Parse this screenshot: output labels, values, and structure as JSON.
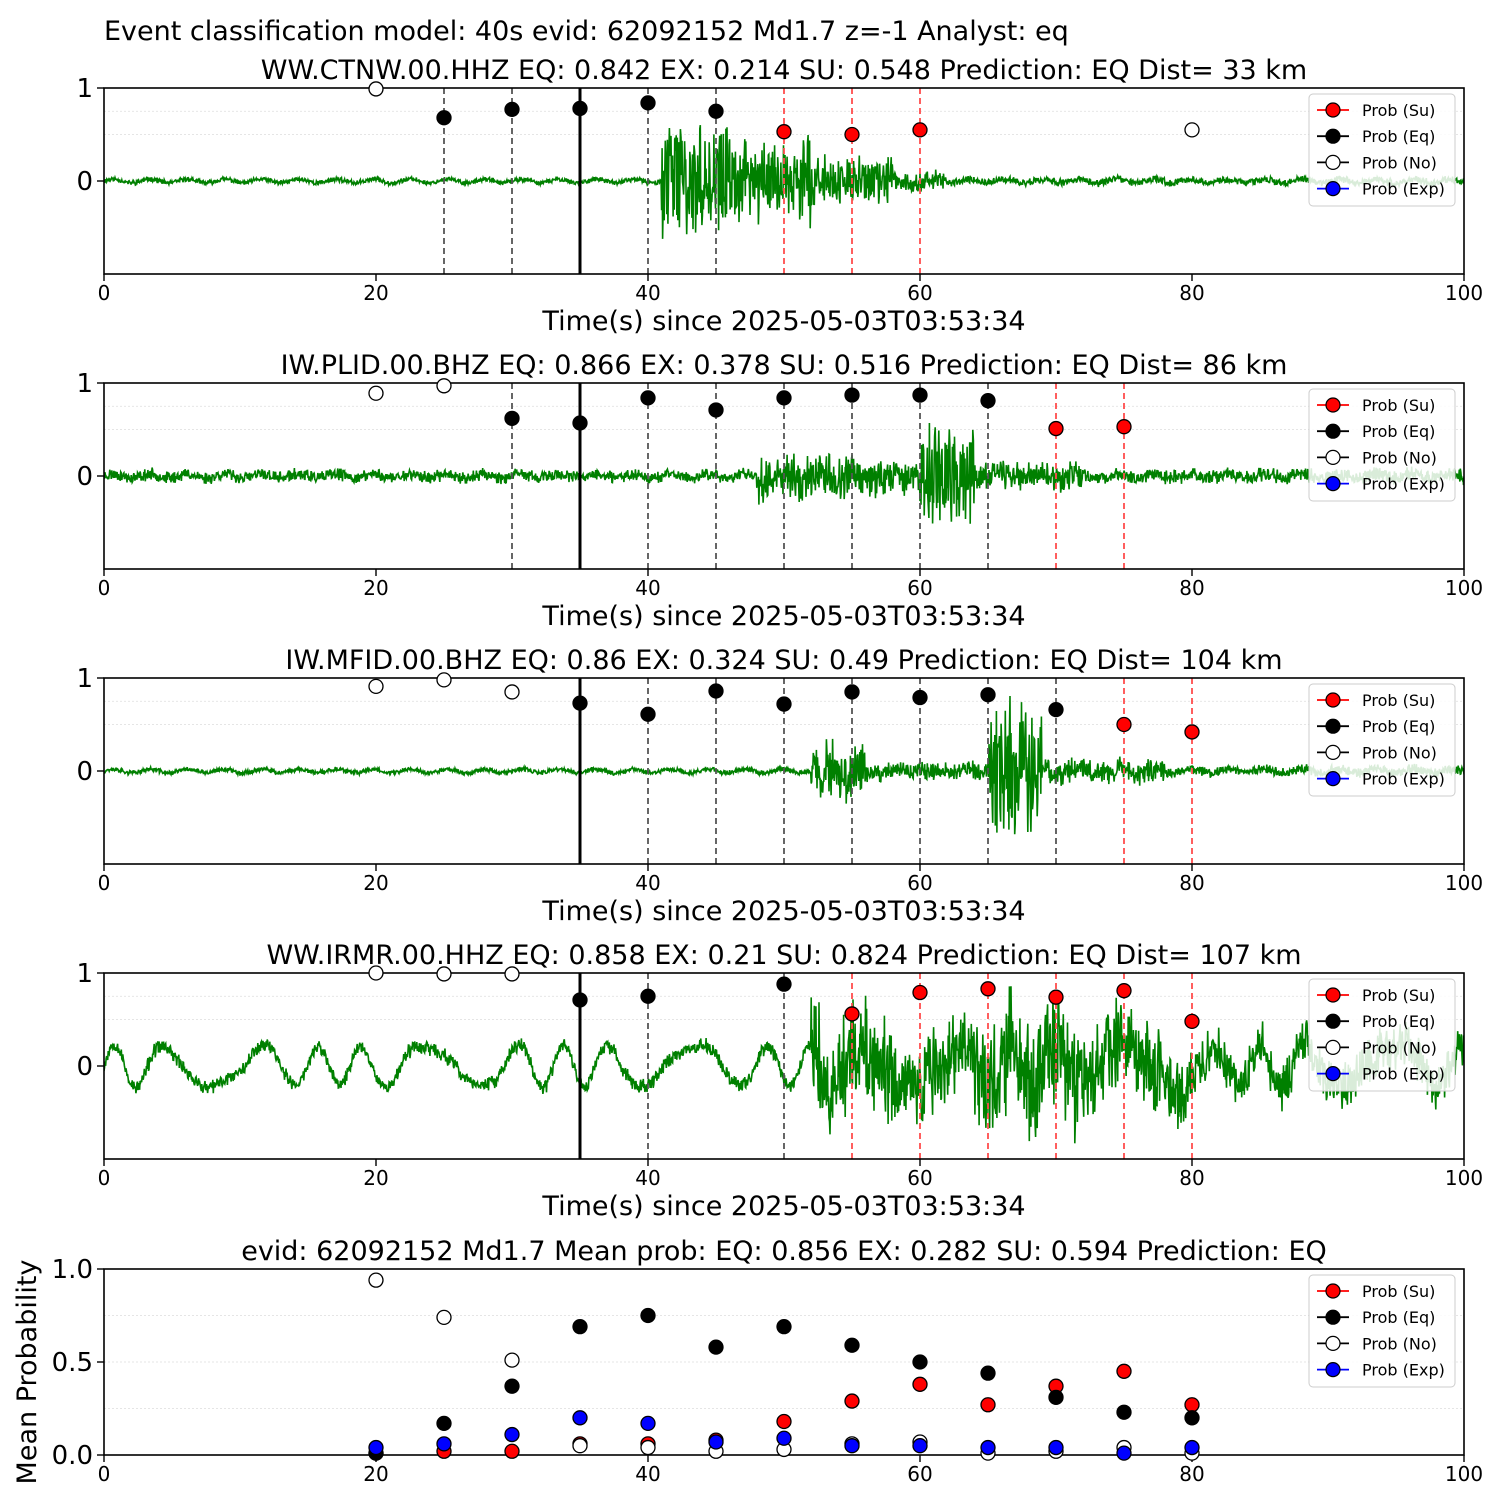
{
  "suptitle": "Event classification model: 40s evid: 62092152 Md1.7 z=-1 Analyst: eq",
  "legend": {
    "items": [
      {
        "label": "Prob (Su)",
        "face": "#ff0000",
        "line": "#ff0000"
      },
      {
        "label": "Prob (Eq)",
        "face": "#000000",
        "line": "#000000"
      },
      {
        "label": "Prob (No)",
        "face": "#ffffff",
        "line": "#000000"
      },
      {
        "label": "Prob (Exp)",
        "face": "#0000ff",
        "line": "#0000ff"
      }
    ],
    "placement": "upper-right"
  },
  "colors": {
    "trace": "#008000",
    "pick": "#000000",
    "eq_window": "#555555",
    "su_window": "#ff4d4d",
    "trace_tail": "#bfe0bf"
  },
  "chart_data": [
    {
      "type": "scatter",
      "title": "WW.CTNW.00.HHZ   EQ: 0.842  EX: 0.214  SU: 0.548   Prediction: EQ    Dist= 33 km",
      "xlabel": "Time(s) since 2025-05-03T03:53:34",
      "xlim": [
        0,
        100
      ],
      "xticks": [
        "0",
        "20",
        "40",
        "60",
        "80",
        "100"
      ],
      "ylim": [
        -1,
        1
      ],
      "yticks": [
        "0",
        "1"
      ],
      "pick_time": 35,
      "trace": {
        "seed": 11,
        "segments": [
          [
            0,
            41,
            0.02
          ],
          [
            41,
            46,
            0.45
          ],
          [
            46,
            52,
            0.35
          ],
          [
            52,
            58,
            0.2
          ],
          [
            58,
            62,
            0.08
          ],
          [
            62,
            100,
            0.03
          ]
        ]
      },
      "eq_lines": [
        25,
        30,
        40,
        45
      ],
      "su_lines": [
        50,
        55,
        60
      ],
      "series": [
        {
          "class": "No",
          "x": [
            20,
            80
          ],
          "y": [
            0.99,
            0.55
          ]
        },
        {
          "class": "Eq",
          "x": [
            25,
            30,
            35,
            40,
            45
          ],
          "y": [
            0.68,
            0.77,
            0.78,
            0.84,
            0.75
          ]
        },
        {
          "class": "Su",
          "x": [
            50,
            55,
            60
          ],
          "y": [
            0.53,
            0.5,
            0.55
          ]
        }
      ]
    },
    {
      "type": "scatter",
      "title": "IW.PLID.00.BHZ   EQ: 0.866  EX: 0.378  SU: 0.516   Prediction: EQ    Dist= 86 km",
      "xlabel": "Time(s) since 2025-05-03T03:53:34",
      "xlim": [
        0,
        100
      ],
      "xticks": [
        "0",
        "20",
        "40",
        "60",
        "80",
        "100"
      ],
      "ylim": [
        -1,
        1
      ],
      "yticks": [
        "0",
        "1"
      ],
      "pick_time": 35,
      "trace": {
        "seed": 23,
        "segments": [
          [
            0,
            48,
            0.05
          ],
          [
            48,
            55,
            0.2
          ],
          [
            55,
            60,
            0.15
          ],
          [
            60,
            64,
            0.4
          ],
          [
            64,
            72,
            0.12
          ],
          [
            72,
            100,
            0.06
          ]
        ]
      },
      "eq_lines": [
        30,
        40,
        45,
        50,
        55,
        60,
        65
      ],
      "su_lines": [
        70,
        75
      ],
      "series": [
        {
          "class": "No",
          "x": [
            20,
            25
          ],
          "y": [
            0.89,
            0.97
          ]
        },
        {
          "class": "Eq",
          "x": [
            30,
            35,
            40,
            45,
            50,
            55,
            60,
            65
          ],
          "y": [
            0.62,
            0.57,
            0.84,
            0.71,
            0.84,
            0.87,
            0.87,
            0.81
          ]
        },
        {
          "class": "Su",
          "x": [
            70,
            75
          ],
          "y": [
            0.51,
            0.53
          ]
        }
      ]
    },
    {
      "type": "scatter",
      "title": "IW.MFID.00.BHZ   EQ: 0.86  EX: 0.324  SU: 0.49   Prediction: EQ    Dist= 104 km",
      "xlabel": "Time(s) since 2025-05-03T03:53:34",
      "xlim": [
        0,
        100
      ],
      "xticks": [
        "0",
        "20",
        "40",
        "60",
        "80",
        "100"
      ],
      "ylim": [
        -1,
        1
      ],
      "yticks": [
        "0",
        "1"
      ],
      "pick_time": 35,
      "trace": {
        "seed": 37,
        "segments": [
          [
            0,
            52,
            0.02
          ],
          [
            52,
            56,
            0.25
          ],
          [
            56,
            65,
            0.08
          ],
          [
            65,
            69,
            0.55
          ],
          [
            69,
            78,
            0.1
          ],
          [
            78,
            100,
            0.04
          ]
        ]
      },
      "eq_lines": [
        40,
        45,
        50,
        55,
        60,
        65,
        70
      ],
      "su_lines": [
        75,
        80
      ],
      "series": [
        {
          "class": "No",
          "x": [
            20,
            25,
            30
          ],
          "y": [
            0.91,
            0.98,
            0.85
          ]
        },
        {
          "class": "Eq",
          "x": [
            35,
            40,
            45,
            50,
            55,
            60,
            65,
            70
          ],
          "y": [
            0.73,
            0.61,
            0.86,
            0.72,
            0.85,
            0.79,
            0.82,
            0.66
          ]
        },
        {
          "class": "Su",
          "x": [
            75,
            80
          ],
          "y": [
            0.5,
            0.42
          ]
        }
      ]
    },
    {
      "type": "scatter",
      "title": "WW.IRMR.00.HHZ   EQ: 0.858  EX: 0.21  SU: 0.824   Prediction: EQ    Dist= 107 km",
      "xlabel": "Time(s) since 2025-05-03T03:53:34",
      "xlim": [
        0,
        100
      ],
      "xticks": [
        "0",
        "20",
        "40",
        "60",
        "80",
        "100"
      ],
      "ylim": [
        -1,
        1
      ],
      "yticks": [
        "0",
        "1"
      ],
      "pick_time": 35,
      "trace": {
        "seed": 53,
        "wave": 0.22,
        "segments": [
          [
            0,
            52,
            0.06
          ],
          [
            52,
            58,
            0.45
          ],
          [
            58,
            64,
            0.35
          ],
          [
            64,
            72,
            0.5
          ],
          [
            72,
            80,
            0.35
          ],
          [
            80,
            100,
            0.2
          ]
        ]
      },
      "eq_lines": [
        40,
        50
      ],
      "su_lines": [
        55,
        60,
        65,
        70,
        75,
        80
      ],
      "series": [
        {
          "class": "No",
          "x": [
            20,
            25,
            30
          ],
          "y": [
            1.0,
            0.99,
            0.99
          ]
        },
        {
          "class": "Eq",
          "x": [
            35,
            40,
            50
          ],
          "y": [
            0.71,
            0.75,
            0.88
          ]
        },
        {
          "class": "Su",
          "x": [
            55,
            60,
            65,
            70,
            75,
            80
          ],
          "y": [
            0.56,
            0.79,
            0.83,
            0.74,
            0.81,
            0.48
          ]
        }
      ]
    },
    {
      "type": "scatter",
      "title": "evid: 62092152  Md1.7   Mean prob:   EQ: 0.856  EX: 0.282  SU: 0.594   Prediction: EQ",
      "ylabel": "Mean Probability",
      "xlim": [
        0,
        100
      ],
      "xticks": [
        "0",
        "20",
        "40",
        "60",
        "80",
        "100"
      ],
      "ylim": [
        0,
        1
      ],
      "yticks": [
        "0.0",
        "0.5",
        "1.0"
      ],
      "series": [
        {
          "class": "Su",
          "x": [
            20,
            25,
            30,
            35,
            40,
            45,
            50,
            55,
            60,
            65,
            70,
            75,
            80
          ],
          "y": [
            0.01,
            0.02,
            0.02,
            0.06,
            0.06,
            0.08,
            0.18,
            0.29,
            0.38,
            0.27,
            0.37,
            0.45,
            0.27
          ]
        },
        {
          "class": "Eq",
          "x": [
            20,
            25,
            30,
            35,
            40,
            45,
            50,
            55,
            60,
            65,
            70,
            75,
            80
          ],
          "y": [
            0.01,
            0.17,
            0.37,
            0.69,
            0.75,
            0.58,
            0.69,
            0.59,
            0.5,
            0.44,
            0.31,
            0.23,
            0.2
          ]
        },
        {
          "class": "No",
          "x": [
            20,
            25,
            30,
            35,
            40,
            45,
            50,
            55,
            60,
            65,
            70,
            75,
            80
          ],
          "y": [
            0.94,
            0.74,
            0.51,
            0.05,
            0.04,
            0.02,
            0.03,
            0.06,
            0.07,
            0.01,
            0.02,
            0.04,
            0.01
          ]
        },
        {
          "class": "Exp",
          "x": [
            20,
            25,
            30,
            35,
            40,
            45,
            50,
            55,
            60,
            65,
            70,
            75,
            80
          ],
          "y": [
            0.04,
            0.06,
            0.11,
            0.2,
            0.17,
            0.07,
            0.09,
            0.05,
            0.05,
            0.04,
            0.04,
            0.01,
            0.04
          ]
        }
      ]
    }
  ]
}
